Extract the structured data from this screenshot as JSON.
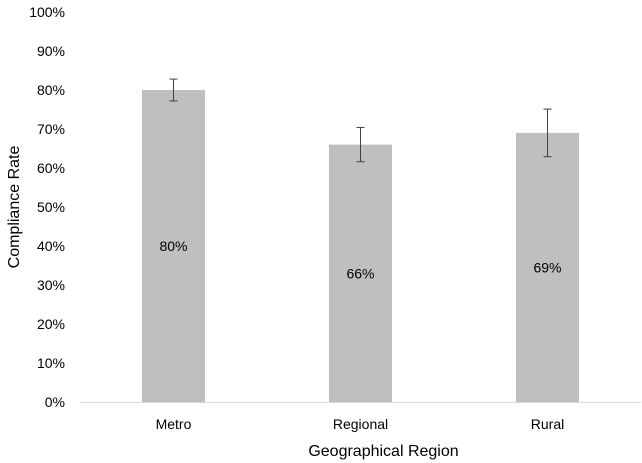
{
  "chart_data": {
    "type": "bar",
    "title": "",
    "xlabel": "Geographical Region",
    "ylabel": "Compliance Rate",
    "categories": [
      "Metro",
      "Regional",
      "Rural"
    ],
    "values": [
      80,
      66,
      69
    ],
    "data_labels": [
      "80%",
      "66%",
      "69%"
    ],
    "error_bars": [
      {
        "low": 77.2,
        "high": 82.8
      },
      {
        "low": 61.6,
        "high": 70.4
      },
      {
        "low": 62.9,
        "high": 75.1
      }
    ],
    "ylim": [
      0,
      100
    ],
    "yticks": [
      0,
      10,
      20,
      30,
      40,
      50,
      60,
      70,
      80,
      90,
      100
    ],
    "ytick_labels": [
      "0%",
      "10%",
      "20%",
      "30%",
      "40%",
      "50%",
      "60%",
      "70%",
      "80%",
      "90%",
      "100%"
    ],
    "bar_color": "#bfbfbf",
    "error_bar_color": "#404040",
    "grid": false,
    "legend": "none"
  }
}
